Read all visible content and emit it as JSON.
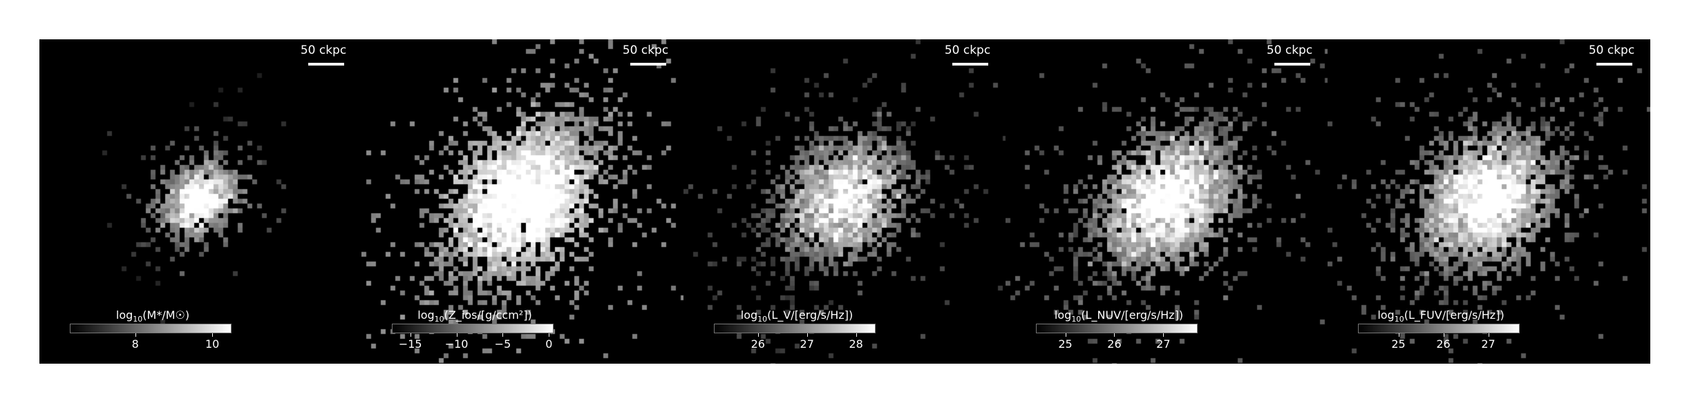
{
  "panels": [
    {
      "scale_bar_label": "50 ckpc",
      "cbar_label_pre": "log",
      "cbar_label_base": "10",
      "cbar_label_post": "(M*/M☉)",
      "cbar_ticks": [
        "8",
        "10"
      ],
      "cbar_range": [
        6.3,
        10.5
      ],
      "cbar_tick_values": [
        8,
        10
      ],
      "distribution": "compact"
    },
    {
      "scale_bar_label": "50 ckpc",
      "cbar_label_pre": "log",
      "cbar_label_base": "10",
      "cbar_label_post": "(Z_ios/[g/ccm²])",
      "cbar_ticks": [
        "−15",
        "−10",
        "−5",
        "0"
      ],
      "cbar_range": [
        -17,
        0.5
      ],
      "cbar_tick_values": [
        -15,
        -10,
        -5,
        0
      ],
      "distribution": "wide"
    },
    {
      "scale_bar_label": "50 ckpc",
      "cbar_label_pre": "log",
      "cbar_label_base": "10",
      "cbar_label_post": "(L_V/[erg/s/Hz])",
      "cbar_ticks": [
        "26",
        "27",
        "28"
      ],
      "cbar_range": [
        25.1,
        28.4
      ],
      "cbar_tick_values": [
        26,
        27,
        28
      ],
      "distribution": "medium"
    },
    {
      "scale_bar_label": "50 ckpc",
      "cbar_label_pre": "log",
      "cbar_label_base": "10",
      "cbar_label_post": "(L_NUV/[erg/s/Hz])",
      "cbar_ticks": [
        "25",
        "26",
        "27"
      ],
      "cbar_range": [
        24.4,
        27.7
      ],
      "cbar_tick_values": [
        25,
        26,
        27
      ],
      "distribution": "bright"
    },
    {
      "scale_bar_label": "50 ckpc",
      "cbar_label_pre": "log",
      "cbar_label_base": "10",
      "cbar_label_post": "(L_FUV/[erg/s/Hz])",
      "cbar_ticks": [
        "25",
        "26",
        "27"
      ],
      "cbar_range": [
        24.1,
        27.7
      ],
      "cbar_tick_values": [
        25,
        26,
        27
      ],
      "distribution": "bright"
    }
  ]
}
